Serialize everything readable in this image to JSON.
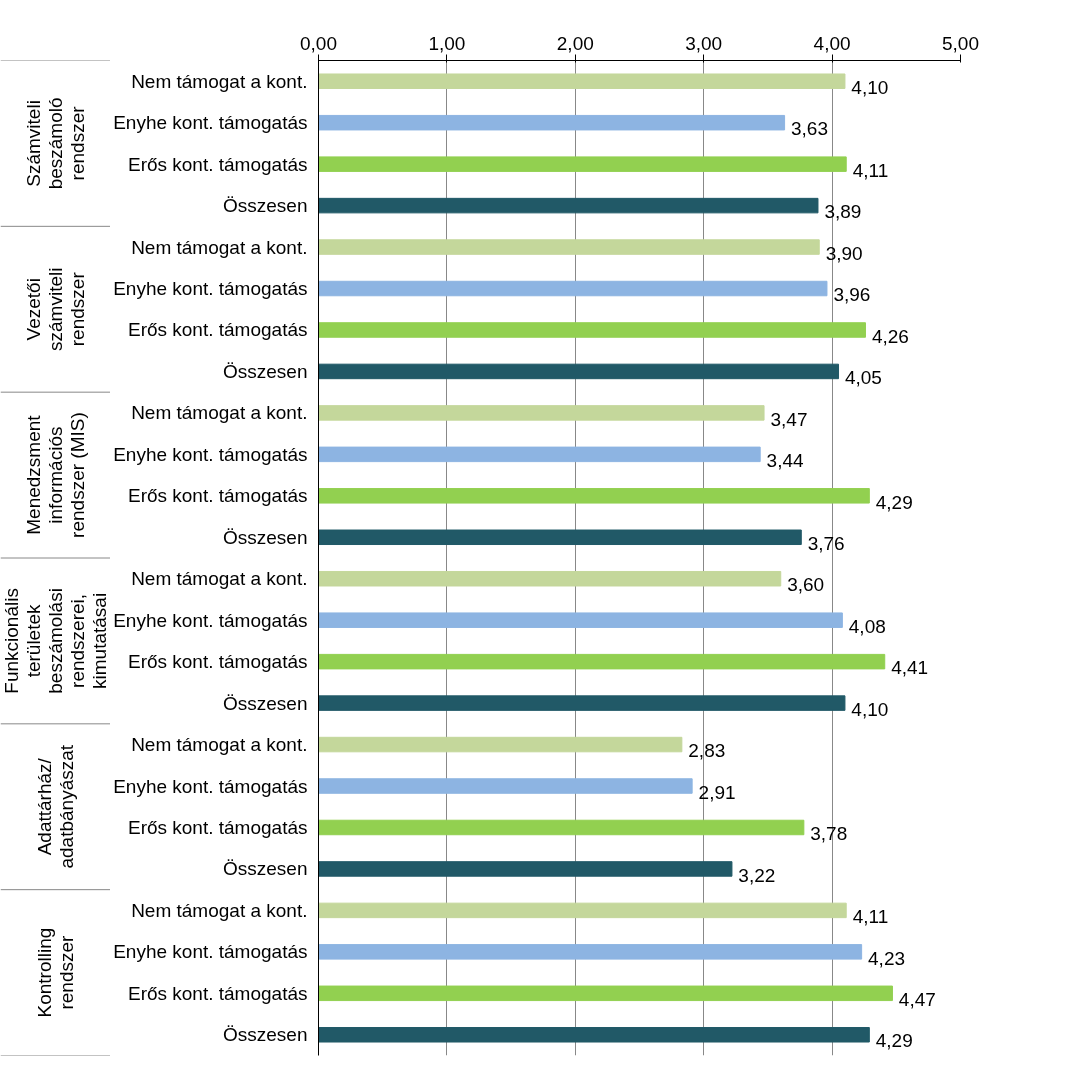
{
  "chart_data": {
    "type": "bar",
    "orientation": "horizontal",
    "categories": [
      "Nem támogat a kont.",
      "Enyhe kont. támogatás",
      "Erős kont. támogatás",
      "Összesen",
      "Nem támogat a kont.",
      "Enyhe kont. támogatás",
      "Erős kont. támogatás",
      "Összesen",
      "Nem támogat a kont.",
      "Enyhe kont. támogatás",
      "Erős kont. támogatás",
      "Összesen",
      "Nem támogat a kont.",
      "Enyhe kont. támogatás",
      "Erős kont. támogatás",
      "Összesen",
      "Nem támogat a kont.",
      "Enyhe kont. támogatás",
      "Erős kont. támogatás",
      "Összesen",
      "Nem támogat a kont.",
      "Enyhe kont. támogatás",
      "Erős kont. támogatás",
      "Összesen"
    ],
    "values": [
      4.1,
      3.63,
      4.11,
      3.89,
      3.9,
      3.96,
      4.26,
      4.05,
      3.47,
      3.44,
      4.29,
      3.76,
      3.6,
      4.08,
      4.41,
      4.1,
      2.83,
      2.91,
      3.78,
      3.22,
      4.11,
      4.23,
      4.47,
      4.29
    ],
    "value_labels": [
      "4,10",
      "3,63",
      "4,11",
      "3,89",
      "3,90",
      "3,96",
      "4,26",
      "4,05",
      "3,47",
      "3,44",
      "4,29",
      "3,76",
      "3,60",
      "4,08",
      "4,41",
      "4,10",
      "2,83",
      "2,91",
      "3,78",
      "3,22",
      "4,11",
      "4,23",
      "4,47",
      "4,29"
    ],
    "colors": [
      "#c4d79b",
      "#8db4e2",
      "#92d050",
      "#215967",
      "#c4d79b",
      "#8db4e2",
      "#92d050",
      "#215967",
      "#c4d79b",
      "#8db4e2",
      "#92d050",
      "#215967",
      "#c4d79b",
      "#8db4e2",
      "#92d050",
      "#215967",
      "#c4d79b",
      "#8db4e2",
      "#92d050",
      "#215967",
      "#c4d79b",
      "#8db4e2",
      "#92d050",
      "#215967"
    ],
    "annotations": [
      "Számviteli\nbeszámoló\nrendszer",
      "Vezetői\nszámviteli\nrendszer",
      "Menedzsment\ninformációs\nrendszer (MIS)",
      "Funkcionális\nterületek\nbeszámolási\nrendszerei,\nkimutatásai",
      "Adattárház/\nadatbányászat",
      "Kontrolling\nrendszer"
    ],
    "xlim": [
      0,
      5
    ],
    "xticks": [
      {
        "value": 0,
        "label": "0,00"
      },
      {
        "value": 1,
        "label": "1,00"
      },
      {
        "value": 2,
        "label": "2,00"
      },
      {
        "value": 3,
        "label": "3,00"
      },
      {
        "value": 4,
        "label": "4,00"
      },
      {
        "value": 5,
        "label": "5,00"
      }
    ],
    "grid": "x"
  }
}
